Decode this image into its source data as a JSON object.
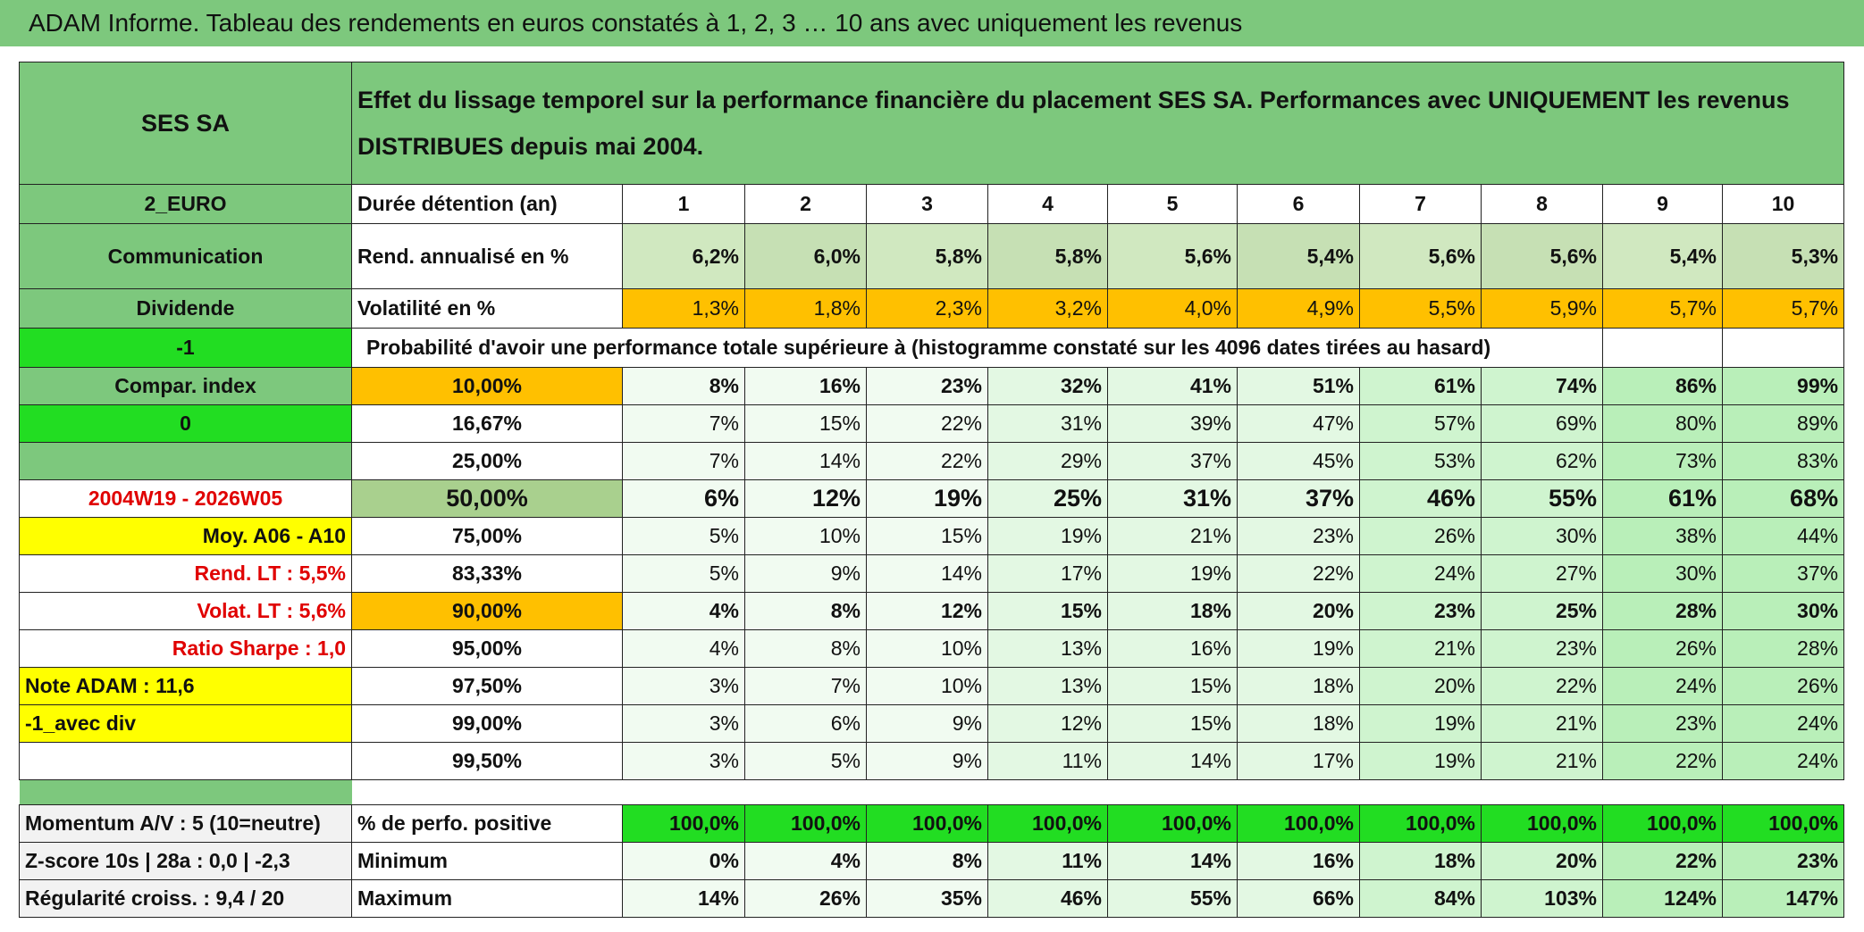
{
  "title": "ADAM Informe. Tableau des rendements en euros constatés à 1, 2, 3 … 10 ans avec uniquement les revenus",
  "header": {
    "left": "SES SA",
    "description": "Effet du lissage temporel sur la performance financière du placement SES SA. Performances avec UNIQUEMENT les revenus DISTRIBUES depuis mai 2004."
  },
  "rows": [
    [
      "2_EURO",
      "Durée détention (an)",
      "1",
      "2",
      "3",
      "4",
      "5",
      "6",
      "7",
      "8",
      "9",
      "10"
    ],
    [
      "Communication",
      "Rend. annualisé en %",
      "6,2%",
      "6,0%",
      "5,8%",
      "5,8%",
      "5,6%",
      "5,4%",
      "5,6%",
      "5,6%",
      "5,4%",
      "5,3%"
    ],
    [
      "Dividende",
      "Volatilité en %",
      "1,3%",
      "1,8%",
      "2,3%",
      "3,2%",
      "4,0%",
      "4,9%",
      "5,5%",
      "5,9%",
      "5,7%",
      "5,7%"
    ],
    [
      "-1",
      "Probabilité d'avoir une performance totale supérieure à (histogramme constaté sur les 4096 dates tirées au hasard)"
    ],
    [
      "Compar. index",
      "10,00%",
      "8%",
      "16%",
      "23%",
      "32%",
      "41%",
      "51%",
      "61%",
      "74%",
      "86%",
      "99%"
    ],
    [
      "0",
      "16,67%",
      "7%",
      "15%",
      "22%",
      "31%",
      "39%",
      "47%",
      "57%",
      "69%",
      "80%",
      "89%"
    ],
    [
      null,
      "25,00%",
      "7%",
      "14%",
      "22%",
      "29%",
      "37%",
      "45%",
      "53%",
      "62%",
      "73%",
      "83%"
    ],
    [
      "2004W19 - 2026W05",
      "50,00%",
      "6%",
      "12%",
      "19%",
      "25%",
      "31%",
      "37%",
      "46%",
      "55%",
      "61%",
      "68%"
    ],
    [
      "Moy. A06 - A10",
      "75,00%",
      "5%",
      "10%",
      "15%",
      "19%",
      "21%",
      "23%",
      "26%",
      "30%",
      "38%",
      "44%"
    ],
    [
      "Rend. LT :   5,5%",
      "83,33%",
      "5%",
      "9%",
      "14%",
      "17%",
      "19%",
      "22%",
      "24%",
      "27%",
      "30%",
      "37%"
    ],
    [
      "Volat. LT :   5,6%",
      "90,00%",
      "4%",
      "8%",
      "12%",
      "15%",
      "18%",
      "20%",
      "23%",
      "25%",
      "28%",
      "30%"
    ],
    [
      "Ratio Sharpe :   1,0",
      "95,00%",
      "4%",
      "8%",
      "10%",
      "13%",
      "16%",
      "19%",
      "21%",
      "23%",
      "26%",
      "28%"
    ],
    [
      "Note ADAM : 11,6",
      "97,50%",
      "3%",
      "7%",
      "10%",
      "13%",
      "15%",
      "18%",
      "20%",
      "22%",
      "24%",
      "26%"
    ],
    [
      "-1_avec div",
      "99,00%",
      "3%",
      "6%",
      "9%",
      "12%",
      "15%",
      "18%",
      "19%",
      "21%",
      "23%",
      "24%"
    ],
    [
      null,
      "99,50%",
      "3%",
      "5%",
      "9%",
      "11%",
      "14%",
      "17%",
      "19%",
      "21%",
      "22%",
      "24%"
    ],
    [
      "Momentum A/V : 5 (10=neutre)",
      "% de perfo. positive",
      "100,0%",
      "100,0%",
      "100,0%",
      "100,0%",
      "100,0%",
      "100,0%",
      "100,0%",
      "100,0%",
      "100,0%",
      "100,0%"
    ],
    [
      "Z-score 10s | 28a : 0,0 | -2,3",
      "Minimum",
      "0%",
      "4%",
      "8%",
      "11%",
      "14%",
      "16%",
      "18%",
      "20%",
      "22%",
      "23%"
    ],
    [
      "Régularité croiss. : 9,4 / 20",
      "Maximum",
      "14%",
      "26%",
      "35%",
      "46%",
      "55%",
      "66%",
      "84%",
      "103%",
      "124%",
      "147%"
    ]
  ]
}
